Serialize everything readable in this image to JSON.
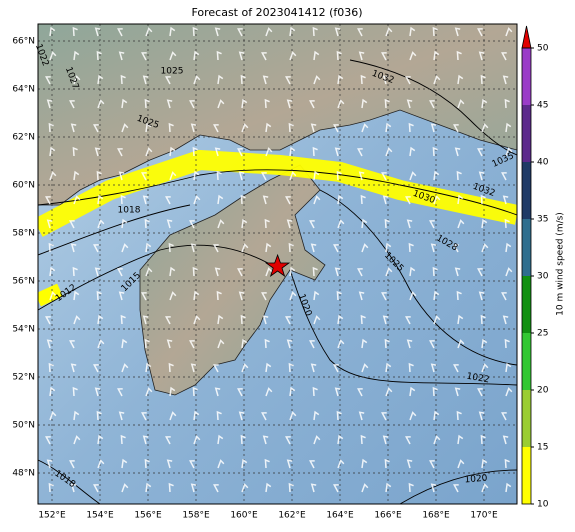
{
  "title": "Forecast of 2023041412 (f036)",
  "lat_labels": [
    "66°N",
    "64°N",
    "62°N",
    "60°N",
    "58°N",
    "56°N",
    "54°N",
    "52°N",
    "50°N",
    "48°N"
  ],
  "lon_labels": [
    "152°E",
    "154°E",
    "156°E",
    "158°E",
    "160°E",
    "162°E",
    "164°E",
    "166°E",
    "168°E",
    "170°E"
  ],
  "colorbar": {
    "label": "10 m wind speed (m/s)",
    "ticks": [
      10,
      15,
      20,
      25,
      30,
      35,
      40,
      45,
      50
    ],
    "colors": [
      "#ffff00",
      "#9acd32",
      "#32c832",
      "#119011",
      "#2e6e8e",
      "#1f3a66",
      "#5c2a8c",
      "#9a3cc8"
    ],
    "extend_color": "#e00000"
  },
  "contour_labels": [
    "1022",
    "1027",
    "1025",
    "1025",
    "1032",
    "1035",
    "1032",
    "1030",
    "1028",
    "1025",
    "1018",
    "1015",
    "1012",
    "1020",
    "1022",
    "1020",
    "1018"
  ]
}
